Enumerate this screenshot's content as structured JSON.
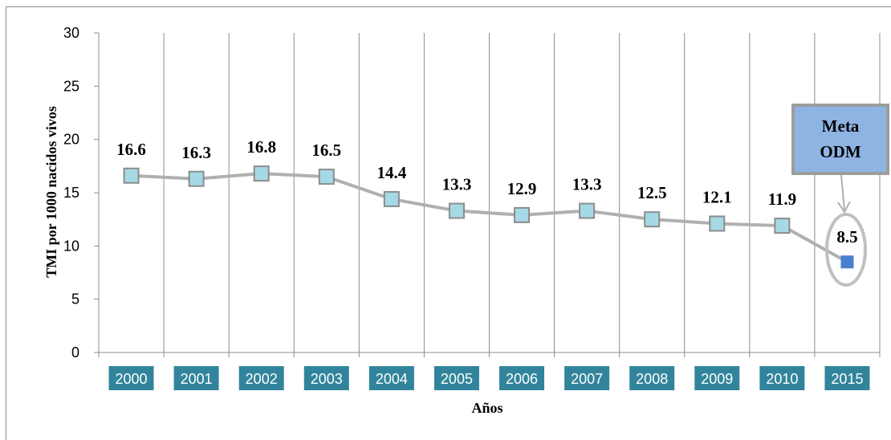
{
  "chart_data": {
    "type": "line",
    "title": "",
    "xlabel": "Años",
    "ylabel": "TMI por 1000 nacidos vivos",
    "categories": [
      "2000",
      "2001",
      "2002",
      "2003",
      "2004",
      "2005",
      "2006",
      "2007",
      "2008",
      "2009",
      "2010",
      "2015"
    ],
    "series": [
      {
        "values": [
          16.6,
          16.3,
          16.8,
          16.5,
          14.4,
          13.3,
          12.9,
          13.3,
          12.5,
          12.1,
          11.9,
          8.5
        ]
      }
    ],
    "data_labels": [
      "16.6",
      "16.3",
      "16.8",
      "16.5",
      "14.4",
      "13.3",
      "12.9",
      "13.3",
      "12.5",
      "12.1",
      "11.9",
      "8.5"
    ],
    "yticks": [
      "0",
      "5",
      "10",
      "15",
      "20",
      "25",
      "30"
    ],
    "ylim": [
      0,
      30
    ],
    "grid": "vertical",
    "annotation": {
      "line1": "Meta",
      "line2": "ODM",
      "target_category": "2015"
    },
    "colors": {
      "marker": "#a6d9e6",
      "marker_stroke": "#8c8c8c",
      "line": "#b0b0b0",
      "target_marker": "#4a7fcf",
      "category_bg": "#31849b",
      "callout_fill": "#8eb4e3",
      "grid": "#8c8c8c"
    }
  }
}
